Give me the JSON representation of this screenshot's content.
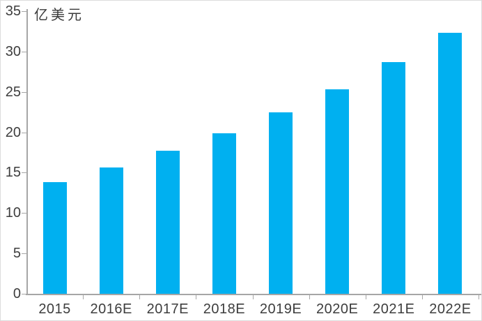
{
  "chart_data": {
    "type": "bar",
    "title": "",
    "xlabel": "",
    "ylabel": "亿美元",
    "unit_label": "亿美元",
    "categories": [
      "2015",
      "2016E",
      "2017E",
      "2018E",
      "2019E",
      "2020E",
      "2021E",
      "2022E"
    ],
    "values": [
      13.8,
      15.6,
      17.7,
      19.9,
      22.5,
      25.3,
      28.7,
      32.3
    ],
    "ylim": [
      0,
      35
    ],
    "y_ticks": [
      0,
      5,
      10,
      15,
      20,
      25,
      30,
      35
    ],
    "grid": false,
    "legend": "none",
    "colors": {
      "bar": "#00B0F0",
      "axis": "#A6A6A6",
      "text": "#3D3D3D",
      "background": "#FFFFFF",
      "border": "#DCDCDC"
    }
  }
}
